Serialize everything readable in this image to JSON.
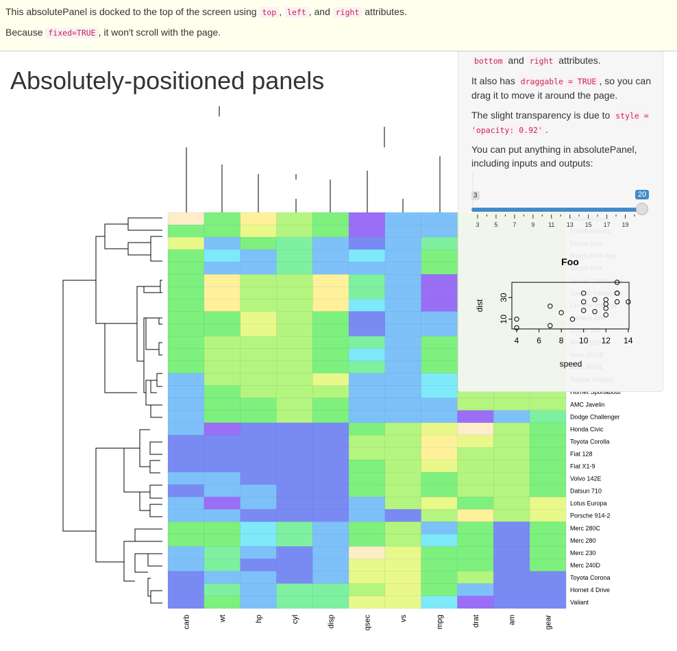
{
  "top_panel": {
    "line1": {
      "text_a": "This absolutePanel is docked to the top of the screen using ",
      "code_top": "top",
      "sep1": ", ",
      "code_left": "left",
      "text_b": ", and ",
      "code_right": "right",
      "text_c": " attributes."
    },
    "line2": {
      "text_a": "Because ",
      "code_fixed": "fixed=TRUE",
      "text_b": ", it won't scroll with the page."
    }
  },
  "page_title": "Absolutely-positioned panels",
  "drag_panel": {
    "p1": {
      "code_bottom": "bottom",
      "text_a": " and ",
      "code_right": "right",
      "text_b": " attributes."
    },
    "p2": {
      "text_a": "It also has ",
      "code_draggable": "draggable = TRUE",
      "text_b": ", so you can drag it to move it around the page."
    },
    "p3": {
      "text_a": "The slight transparency is due to ",
      "code_style": "style = 'opacity: 0.92'",
      "text_b": "."
    },
    "p4": "You can put anything in absolutePanel, including inputs and outputs:",
    "slider": {
      "min": 3,
      "max": 20,
      "value_low": 3,
      "value_high": 20,
      "min_label": "3",
      "max_label": "20",
      "tick_labels": [
        "3",
        "5",
        "7",
        "9",
        "11",
        "13",
        "15",
        "17",
        "19"
      ],
      "color": "#428bca"
    },
    "plot": {
      "chart_data": {
        "type": "scatter",
        "title": "Foo",
        "xlabel": "speed",
        "ylabel": "dist",
        "x_ticks": [
          "4",
          "6",
          "8",
          "10",
          "12",
          "14"
        ],
        "y_ticks": [
          "10",
          "30"
        ],
        "xlim": [
          4,
          14.5
        ],
        "ylim": [
          1,
          44
        ],
        "points": [
          {
            "x": 4,
            "y": 2
          },
          {
            "x": 4,
            "y": 10
          },
          {
            "x": 7,
            "y": 4
          },
          {
            "x": 7,
            "y": 22
          },
          {
            "x": 8,
            "y": 16
          },
          {
            "x": 9,
            "y": 10
          },
          {
            "x": 10,
            "y": 18
          },
          {
            "x": 10,
            "y": 26
          },
          {
            "x": 10,
            "y": 34
          },
          {
            "x": 11,
            "y": 17
          },
          {
            "x": 11,
            "y": 28
          },
          {
            "x": 12,
            "y": 14
          },
          {
            "x": 12,
            "y": 20
          },
          {
            "x": 12,
            "y": 24
          },
          {
            "x": 12,
            "y": 28
          },
          {
            "x": 13,
            "y": 26
          },
          {
            "x": 13,
            "y": 34
          },
          {
            "x": 13,
            "y": 34
          },
          {
            "x": 13,
            "y": 46
          },
          {
            "x": 14,
            "y": 26
          }
        ]
      }
    }
  },
  "heatmap": {
    "chart_data": {
      "type": "heatmap",
      "columns": [
        "carb",
        "wt",
        "hp",
        "cyl",
        "disp",
        "qsec",
        "vs",
        "mpg",
        "drat",
        "am",
        "gear"
      ],
      "rows": [
        "Maserati Bora",
        "Ford Pantera L",
        "Ferrari Dino",
        "Mazda RX4 Wag",
        "Mazda RX4",
        "Lincoln Continental",
        "Cadillac Fleetwood",
        "Chrysler Imperial",
        "Camaro Z28",
        "Duster 360",
        "Merc 450SLC",
        "Merc 450SE",
        "Merc 450SL",
        "Pontiac Firebird",
        "Hornet Sportabout",
        "AMC Javelin",
        "Dodge Challenger",
        "Honda Civic",
        "Toyota Corolla",
        "Fiat 128",
        "Fiat X1-9",
        "Volvo 142E",
        "Datsun 710",
        "Lotus Europa",
        "Porsche 914-2",
        "Merc 280C",
        "Merc 280",
        "Merc 230",
        "Merc 240D",
        "Toyota Corona",
        "Hornet 4 Drive",
        "Valiant"
      ],
      "palette": [
        "#9a6ff5",
        "#7a8af3",
        "#7ec1f9",
        "#7ee9f9",
        "#7ef0a0",
        "#7ef07e",
        "#b3f57e",
        "#e8f98a",
        "#fff19a",
        "#fdedc8"
      ],
      "values": [
        [
          9,
          5,
          8,
          6,
          5,
          0,
          2,
          2,
          6,
          6,
          6
        ],
        [
          5,
          5,
          7,
          6,
          5,
          0,
          2,
          2,
          6,
          6,
          6
        ],
        [
          7,
          2,
          5,
          4,
          2,
          1,
          2,
          4,
          6,
          6,
          6
        ],
        [
          5,
          3,
          2,
          4,
          2,
          3,
          2,
          5,
          6,
          6,
          6
        ],
        [
          5,
          2,
          2,
          4,
          2,
          2,
          2,
          5,
          6,
          6,
          6
        ],
        [
          5,
          8,
          6,
          6,
          8,
          4,
          2,
          0,
          6,
          6,
          6
        ],
        [
          5,
          8,
          6,
          6,
          8,
          4,
          2,
          0,
          6,
          6,
          6
        ],
        [
          5,
          8,
          6,
          6,
          8,
          3,
          2,
          0,
          6,
          6,
          6
        ],
        [
          5,
          5,
          7,
          6,
          5,
          1,
          2,
          2,
          6,
          6,
          6
        ],
        [
          5,
          5,
          7,
          6,
          5,
          1,
          2,
          2,
          6,
          6,
          6
        ],
        [
          5,
          6,
          6,
          6,
          5,
          4,
          2,
          5,
          6,
          6,
          6
        ],
        [
          5,
          6,
          6,
          6,
          5,
          3,
          2,
          5,
          6,
          6,
          6
        ],
        [
          5,
          6,
          6,
          6,
          5,
          4,
          2,
          5,
          6,
          6,
          6
        ],
        [
          2,
          6,
          6,
          6,
          7,
          2,
          2,
          3,
          6,
          6,
          6
        ],
        [
          2,
          5,
          6,
          6,
          6,
          2,
          2,
          3,
          6,
          6,
          6
        ],
        [
          2,
          5,
          5,
          6,
          5,
          2,
          2,
          2,
          6,
          6,
          6
        ],
        [
          2,
          5,
          5,
          6,
          5,
          2,
          2,
          2,
          0,
          2,
          4
        ]
      ],
      "values_continued": [
        [
          2,
          0,
          1,
          1,
          1,
          5,
          6,
          7,
          9,
          6,
          5
        ],
        [
          1,
          1,
          1,
          1,
          1,
          6,
          6,
          8,
          7,
          6,
          5
        ],
        [
          1,
          1,
          1,
          1,
          1,
          6,
          6,
          8,
          6,
          6,
          5
        ],
        [
          1,
          1,
          1,
          1,
          1,
          5,
          6,
          7,
          6,
          6,
          5
        ],
        [
          2,
          2,
          1,
          1,
          1,
          5,
          6,
          5,
          6,
          6,
          5
        ],
        [
          1,
          2,
          2,
          1,
          1,
          5,
          6,
          5,
          6,
          6,
          5
        ],
        [
          2,
          0,
          2,
          1,
          1,
          2,
          6,
          7,
          5,
          6,
          7
        ],
        [
          2,
          2,
          1,
          1,
          1,
          2,
          1,
          6,
          8,
          6,
          7
        ],
        [
          5,
          5,
          3,
          4,
          2,
          5,
          6,
          2,
          5,
          1,
          5
        ],
        [
          5,
          5,
          3,
          4,
          2,
          5,
          6,
          3,
          5,
          1,
          5
        ],
        [
          2,
          4,
          2,
          1,
          2,
          9,
          7,
          5,
          5,
          1,
          5
        ],
        [
          2,
          4,
          1,
          1,
          2,
          7,
          7,
          5,
          5,
          1,
          5
        ],
        [
          1,
          2,
          2,
          1,
          2,
          7,
          7,
          5,
          6,
          1,
          1
        ],
        [
          1,
          4,
          2,
          4,
          4,
          6,
          7,
          5,
          2,
          1,
          1
        ],
        [
          1,
          5,
          2,
          4,
          4,
          7,
          7,
          3,
          0,
          1,
          1
        ]
      ]
    }
  }
}
